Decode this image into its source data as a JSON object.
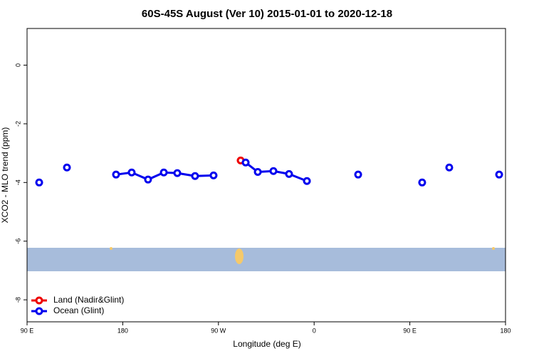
{
  "chart_data": {
    "type": "line",
    "title": "60S-45S August (Ver 10)   2015-01-01 to 2020-12-18",
    "x_label": "Longitude (deg E)",
    "y_label": "XCO2 - MLO trend (ppm)",
    "xlim": [
      90,
      540
    ],
    "xticks": [
      {
        "value": 90,
        "label": "90 E"
      },
      {
        "value": 180,
        "label": "180"
      },
      {
        "value": 270,
        "label": "90 W"
      },
      {
        "value": 360,
        "label": "0"
      },
      {
        "value": 450,
        "label": "90 E"
      },
      {
        "value": 540,
        "label": "180"
      }
    ],
    "ylim": [
      -8.75,
      1.25
    ],
    "yticks": [
      0,
      -2,
      -4,
      -6,
      -8
    ],
    "legend": "bottom-left",
    "series": [
      {
        "name": "Land (Nadir&Glint)",
        "color": "#ee0000",
        "x": [
          290.9
        ],
        "values": [
          -3.25
        ]
      },
      {
        "name": "Ocean (Glint)",
        "color": "#0000ee",
        "x": [
          101.4,
          null,
          127.5,
          null,
          173.7,
          188.4,
          203.8,
          218.6,
          231.3,
          248.0,
          265.4,
          null,
          295.6,
          307.0,
          321.7,
          336.4,
          353.2,
          null,
          401.4,
          null,
          461.6,
          null,
          487.1,
          null,
          534.0
        ],
        "values": [
          -4.0,
          null,
          -3.49,
          null,
          -3.73,
          -3.66,
          -3.9,
          -3.66,
          -3.68,
          -3.78,
          -3.76,
          null,
          -3.32,
          -3.64,
          -3.61,
          -3.71,
          -3.95,
          null,
          -3.73,
          null,
          -4.0,
          null,
          -3.49,
          null,
          -3.73
        ]
      }
    ]
  }
}
